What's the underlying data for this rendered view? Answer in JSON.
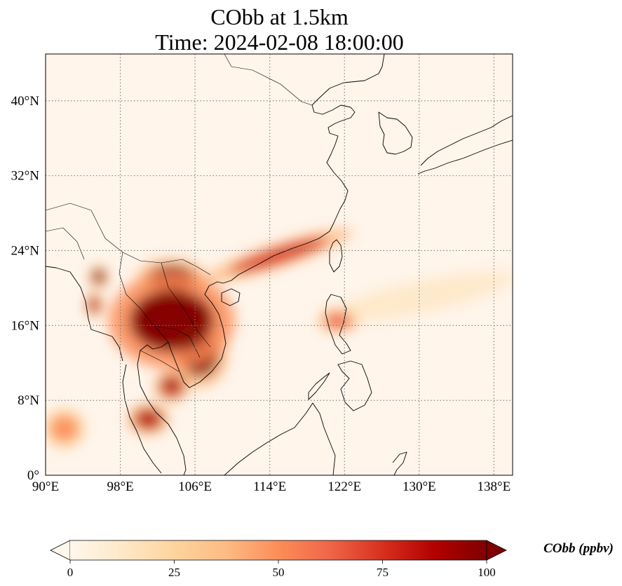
{
  "title": {
    "line1": "CObb at 1.5km",
    "line2": "Time: 2024-02-08 18:00:00"
  },
  "map": {
    "projection": "PlateCarree",
    "lon_range": [
      90,
      140
    ],
    "lat_range": [
      0,
      45
    ],
    "gridlines": "dotted",
    "xticks": [
      {
        "lon": 90,
        "label": "90°E"
      },
      {
        "lon": 98,
        "label": "98°E"
      },
      {
        "lon": 106,
        "label": "106°E"
      },
      {
        "lon": 114,
        "label": "114°E"
      },
      {
        "lon": 122,
        "label": "122°E"
      },
      {
        "lon": 130,
        "label": "130°E"
      },
      {
        "lon": 138,
        "label": "138°E"
      }
    ],
    "yticks": [
      {
        "lat": 0,
        "label": "0°"
      },
      {
        "lat": 8,
        "label": "8°N"
      },
      {
        "lat": 16,
        "label": "16°N"
      },
      {
        "lat": 24,
        "label": "24°N"
      },
      {
        "lat": 32,
        "label": "32°N"
      },
      {
        "lat": 40,
        "label": "40°N"
      }
    ],
    "colormap": "OrRd",
    "background_color": "#fff5eb",
    "plumes": [
      {
        "region": "Laos / northern Thailand / Vietnam highlands",
        "lon": 103.5,
        "lat": 16.5,
        "w": 9,
        "h": 6,
        "value": 100
      },
      {
        "region": "Cambodia",
        "lon": 106.5,
        "lat": 12.8,
        "w": 4,
        "h": 4,
        "value": 95
      },
      {
        "region": "northern Laos / Vietnam",
        "lon": 103.5,
        "lat": 21,
        "w": 5,
        "h": 2.5,
        "value": 95
      },
      {
        "region": "Myanmar north",
        "lon": 95.7,
        "lat": 21.2,
        "w": 1.4,
        "h": 1.4,
        "value": 95
      },
      {
        "region": "Myanmar central",
        "lon": 95.2,
        "lat": 18.2,
        "w": 1.2,
        "h": 1.6,
        "value": 90
      },
      {
        "region": "Gulf of Thailand",
        "lon": 101,
        "lat": 6,
        "w": 3,
        "h": 2,
        "value": 90
      },
      {
        "region": "southern Vietnam",
        "lon": 103.5,
        "lat": 9.5,
        "w": 2.5,
        "h": 2,
        "value": 85
      },
      {
        "region": "southern China coast",
        "lon": 115,
        "lat": 23.5,
        "w": 11,
        "h": 1.5,
        "angle": -18,
        "value": 70
      },
      {
        "region": "Luzon",
        "lon": 121.3,
        "lat": 16.5,
        "w": 3,
        "h": 1.6,
        "value": 60
      },
      {
        "region": "Andaman Sea",
        "lon": 92,
        "lat": 5,
        "w": 3,
        "h": 2.5,
        "value": 45
      },
      {
        "region": "western Pacific streak",
        "lon": 130,
        "lat": 19,
        "w": 14,
        "h": 2,
        "angle": -12,
        "value": 15
      }
    ]
  },
  "colorbar": {
    "label": "CObb (ppbv)",
    "min": 0,
    "max": 100,
    "extend": "both",
    "ticks": [
      {
        "value": 0,
        "label": "0"
      },
      {
        "value": 25,
        "label": "25"
      },
      {
        "value": 50,
        "label": "50"
      },
      {
        "value": 75,
        "label": "75"
      },
      {
        "value": 100,
        "label": "100"
      }
    ],
    "colors": [
      "#fff7ec",
      "#fee8c8",
      "#fdd49e",
      "#fdbb84",
      "#fc8d59",
      "#ef6548",
      "#d7301f",
      "#b30000",
      "#7f0000"
    ]
  }
}
